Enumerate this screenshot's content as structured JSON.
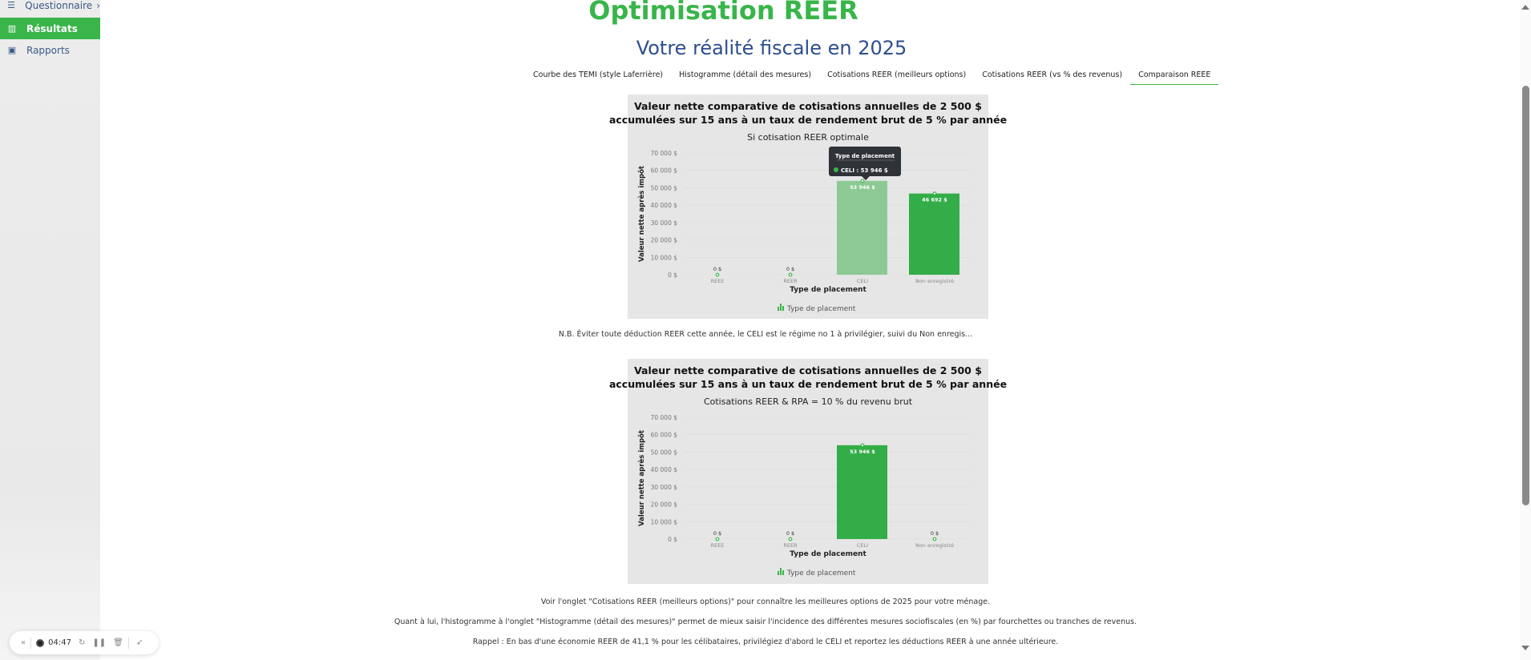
{
  "sidebar": {
    "items": [
      {
        "label": "Questionnaire",
        "icon": "list-icon",
        "chevron": "›"
      },
      {
        "label": "Résultats",
        "icon": "bar-chart-icon",
        "active": true
      },
      {
        "label": "Rapports",
        "icon": "report-icon"
      }
    ]
  },
  "header": {
    "title": "Optimisation REER",
    "subtitle": "Votre réalité fiscale en 2025"
  },
  "tabs": [
    {
      "label": "Courbe des TEMI (style Laferrière)"
    },
    {
      "label": "Histogramme (détail des mesures)"
    },
    {
      "label": "Cotisations REER (meilleurs options)"
    },
    {
      "label": "Cotisations REER (vs % des revenus)"
    },
    {
      "label": "Comparaison REEE",
      "active": true
    }
  ],
  "note": "N.B. Éviter toute déduction REER cette année, le CELI est le régime no 1 à privilégier, suivi du Non enregis...",
  "footer": [
    "Voir l'onglet \"Cotisations REER (meilleurs options)\" pour connaître les meilleures options de 2025 pour votre ménage.",
    "Quant à lui, l'histogramme à l'onglet \"Histogramme (détail des mesures)\" permet de mieux saisir l'incidence des différentes mesures sociofiscales (en %) par fourchettes ou tranches de revenus.",
    "Rappel : En bas d'une économie REER de 41,1 % pour les célibataires, privilégiez d'abord le CELI et reportez les déductions REER à une année ultérieure."
  ],
  "player": {
    "time": "04:47",
    "collapse": "«"
  },
  "colors": {
    "accent": "#39b54a",
    "bar": "#33ad47",
    "bar_hover": "#8cc995",
    "subtitle": "#2d4e8f"
  },
  "chart_data": [
    {
      "type": "bar",
      "title": [
        "Valeur nette comparative de cotisations annuelles de 2 500 $",
        "accumulées sur 15 ans à un taux de rendement brut de 5 % par année"
      ],
      "subtitle": "Si cotisation REER optimale",
      "xlabel": "Type de placement",
      "ylabel": "Valeur nette après impôt",
      "categories": [
        "REEE",
        "REER",
        "CELI",
        "Non enregistré"
      ],
      "values": [
        0,
        0,
        53946,
        46692
      ],
      "value_labels": [
        "0 $",
        "0 $",
        "53 946 $",
        "46 692 $"
      ],
      "ylim": [
        0,
        70000
      ],
      "yticks": [
        "0 $",
        "10 000 $",
        "20 000 $",
        "30 000 $",
        "40 000 $",
        "50 000 $",
        "60 000 $",
        "70 000 $"
      ],
      "legend": "Type de placement",
      "legend_position": "bottom",
      "grid": true,
      "hovered_index": 2,
      "tooltip": {
        "title": "Type de placement",
        "text": "CELI : 53 946 $"
      }
    },
    {
      "type": "bar",
      "title": [
        "Valeur nette comparative de cotisations annuelles de 2 500 $",
        "accumulées sur 15 ans à un taux de rendement brut de 5 % par année"
      ],
      "subtitle": "Cotisations REER & RPA = 10 % du revenu brut",
      "xlabel": "Type de placement",
      "ylabel": "Valeur nette après impôt",
      "categories": [
        "REEE",
        "REER",
        "CELI",
        "Non enregistré"
      ],
      "values": [
        0,
        0,
        53946,
        0
      ],
      "value_labels": [
        "0 $",
        "0 $",
        "53 946 $",
        "0 $"
      ],
      "ylim": [
        0,
        70000
      ],
      "yticks": [
        "0 $",
        "10 000 $",
        "20 000 $",
        "30 000 $",
        "40 000 $",
        "50 000 $",
        "60 000 $",
        "70 000 $"
      ],
      "legend": "Type de placement",
      "legend_position": "bottom",
      "grid": true
    }
  ]
}
